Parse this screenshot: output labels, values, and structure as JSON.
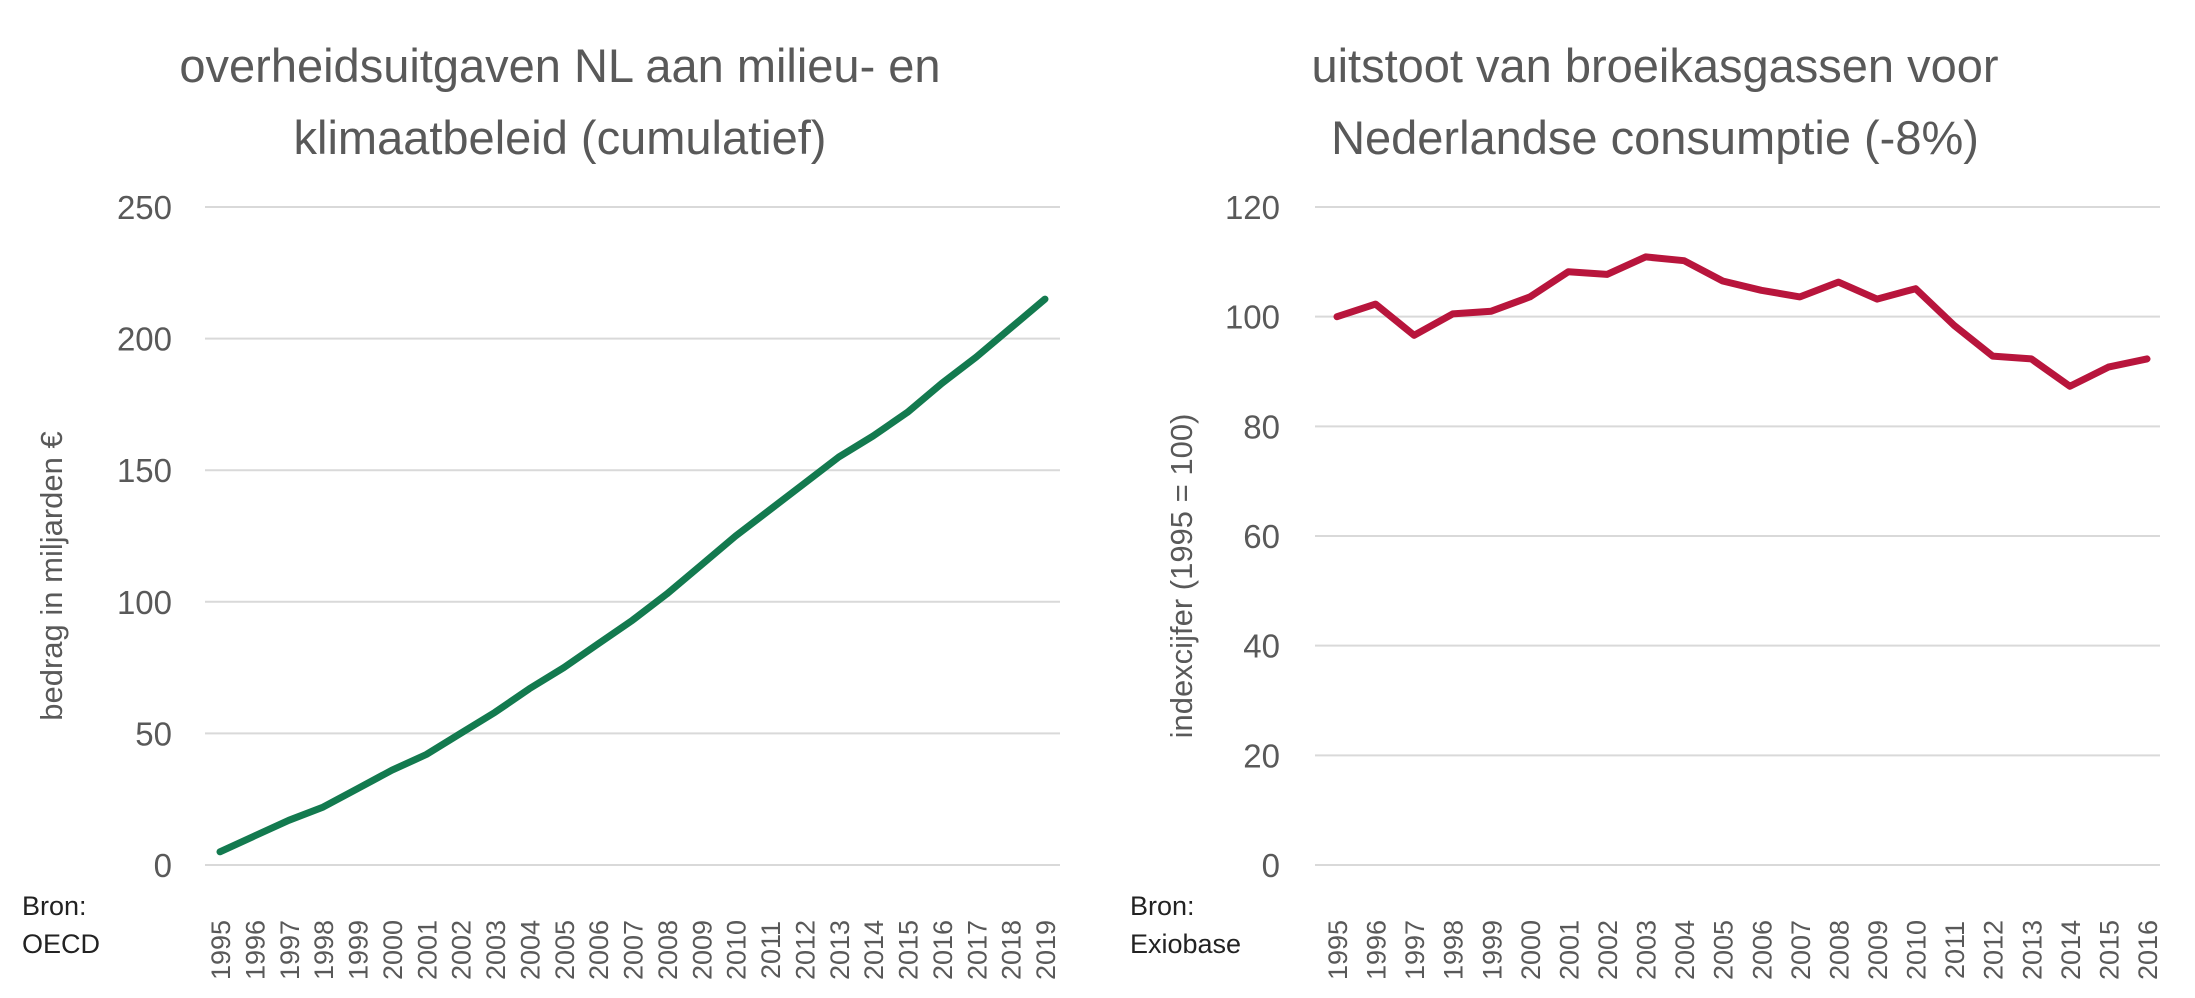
{
  "chart_data": [
    {
      "type": "line",
      "title_lines": [
        "overheidsuitgaven NL aan milieu- en",
        "klimaatbeleid (cumulatief)"
      ],
      "xlabel": "",
      "ylabel": "bedrag in miljarden €",
      "ylim": [
        0,
        250
      ],
      "yticks": [
        0,
        50,
        100,
        150,
        200,
        250
      ],
      "grid": true,
      "color": "#137a4f",
      "source": [
        "Bron:",
        "OECD"
      ],
      "x": [
        "1995",
        "1996",
        "1997",
        "1998",
        "1999",
        "2000",
        "2001",
        "2002",
        "2003",
        "2004",
        "2005",
        "2006",
        "2007",
        "2008",
        "2009",
        "2010",
        "2011",
        "2012",
        "2013",
        "2014",
        "2015",
        "2016",
        "2017",
        "2018",
        "2019"
      ],
      "series": [
        {
          "name": "cumulatief",
          "values": [
            5,
            11,
            17,
            22,
            29,
            36,
            42,
            50,
            58,
            67,
            75,
            84,
            93,
            103,
            114,
            125,
            135,
            145,
            155,
            163,
            172,
            183,
            193,
            204,
            215
          ]
        }
      ]
    },
    {
      "type": "line",
      "title_lines": [
        "uitstoot van broeikasgassen voor",
        "Nederlandse consumptie (-8%)"
      ],
      "xlabel": "",
      "ylabel": "indexcijfer (1995 = 100)",
      "ylim": [
        0,
        120
      ],
      "yticks": [
        0,
        20,
        40,
        60,
        80,
        100,
        120
      ],
      "grid": true,
      "color": "#b8153c",
      "source": [
        "Bron:",
        "Exiobase"
      ],
      "x": [
        "1995",
        "1996",
        "1997",
        "1998",
        "1999",
        "2000",
        "2001",
        "2002",
        "2003",
        "2004",
        "2005",
        "2006",
        "2007",
        "2008",
        "2009",
        "2010",
        "2011",
        "2012",
        "2013",
        "2014",
        "2015",
        "2016"
      ],
      "series": [
        {
          "name": "index",
          "values": [
            100,
            102.3,
            96.6,
            100.5,
            101,
            103.6,
            108.2,
            107.7,
            110.9,
            110.2,
            106.5,
            104.8,
            103.6,
            106.3,
            103.2,
            105.1,
            98.4,
            92.8,
            92.3,
            87.3,
            90.8,
            92.3
          ]
        }
      ]
    }
  ]
}
